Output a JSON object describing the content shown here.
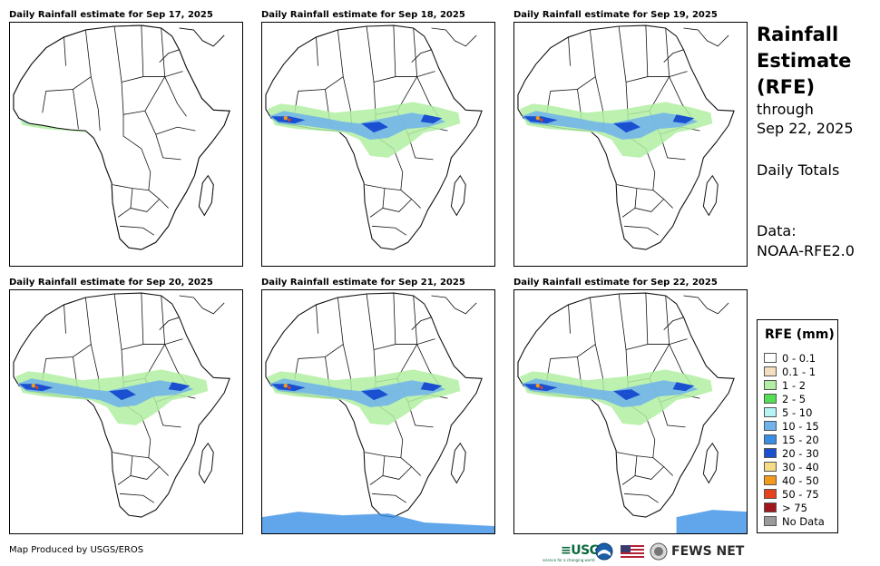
{
  "panels": [
    {
      "title": "Daily Rainfall estimate for Sep 17, 2025"
    },
    {
      "title": "Daily Rainfall estimate for Sep 18, 2025"
    },
    {
      "title": "Daily Rainfall estimate for Sep 19, 2025"
    },
    {
      "title": "Daily Rainfall estimate for Sep 20, 2025"
    },
    {
      "title": "Daily Rainfall estimate for Sep 21, 2025"
    },
    {
      "title": "Daily Rainfall estimate for Sep 22, 2025"
    }
  ],
  "sidebar": {
    "title_line1": "Rainfall",
    "title_line2": "Estimate",
    "title_line3": "(RFE)",
    "through_label": "through",
    "through_date": "Sep 22, 2025",
    "totals_label": "Daily Totals",
    "data_label": "Data:",
    "data_source": "NOAA-RFE2.0"
  },
  "legend": {
    "title": "RFE (mm)",
    "items": [
      {
        "label": "0 - 0.1",
        "color": "#ffffff"
      },
      {
        "label": "0.1 - 1",
        "color": "#f3dfbf"
      },
      {
        "label": "1 - 2",
        "color": "#b2eea2"
      },
      {
        "label": "2 - 5",
        "color": "#55dd55"
      },
      {
        "label": "5 - 10",
        "color": "#b7f4f6"
      },
      {
        "label": "10 - 15",
        "color": "#6fb2ec"
      },
      {
        "label": "15 - 20",
        "color": "#3a8ee6"
      },
      {
        "label": "20 - 30",
        "color": "#1a4fd0"
      },
      {
        "label": "30 - 40",
        "color": "#f6dc86"
      },
      {
        "label": "40 - 50",
        "color": "#f39a1c"
      },
      {
        "label": "50 - 75",
        "color": "#e8421d"
      },
      {
        "label": "> 75",
        "color": "#a0161c"
      },
      {
        "label": "No Data",
        "color": "#9a9a9a"
      }
    ]
  },
  "footer": {
    "credit": "Map Produced by USGS/EROS",
    "usgs": "≡USGS",
    "usgs_tagline": "science for a changing world",
    "fews": "FEWS NET"
  }
}
